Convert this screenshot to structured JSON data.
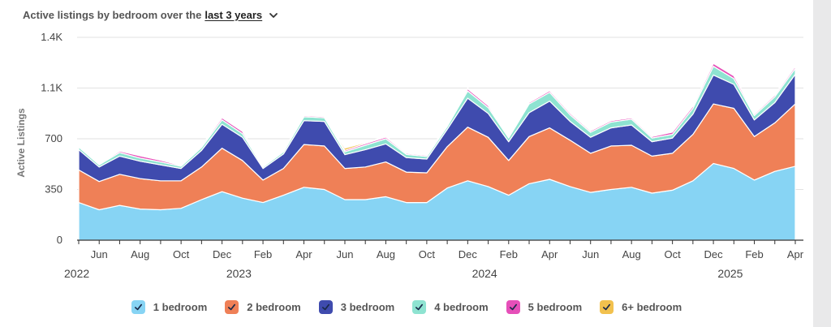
{
  "header": {
    "prefix": "Active listings by bedroom over the",
    "range_link": "last 3 years"
  },
  "chart_data": {
    "type": "area",
    "stacked": true,
    "ylabel": "Active Listings",
    "y_ticks": [
      "0",
      "350",
      "700",
      "1.1K",
      "1.4K"
    ],
    "y_tick_values": [
      0,
      350,
      700,
      1050,
      1400
    ],
    "ylim": [
      0,
      1400
    ],
    "x_months": [
      "May 2022",
      "Jun 2022",
      "Jul 2022",
      "Aug 2022",
      "Sep 2022",
      "Oct 2022",
      "Nov 2022",
      "Dec 2022",
      "Jan 2023",
      "Feb 2023",
      "Mar 2023",
      "Apr 2023",
      "May 2023",
      "Jun 2023",
      "Jul 2023",
      "Aug 2023",
      "Sep 2023",
      "Oct 2023",
      "Nov 2023",
      "Dec 2023",
      "Jan 2024",
      "Feb 2024",
      "Mar 2024",
      "Apr 2024",
      "May 2024",
      "Jun 2024",
      "Jul 2024",
      "Aug 2024",
      "Sep 2024",
      "Oct 2024",
      "Nov 2024",
      "Dec 2024",
      "Jan 2025",
      "Feb 2025",
      "Mar 2025",
      "Apr 2025"
    ],
    "x_tick_labels": [
      {
        "label": "Jun",
        "index": 1
      },
      {
        "label": "Aug",
        "index": 3
      },
      {
        "label": "Oct",
        "index": 5
      },
      {
        "label": "Dec",
        "index": 7
      },
      {
        "label": "Feb",
        "index": 9
      },
      {
        "label": "Apr",
        "index": 11
      },
      {
        "label": "Jun",
        "index": 13
      },
      {
        "label": "Aug",
        "index": 15
      },
      {
        "label": "Oct",
        "index": 17
      },
      {
        "label": "Dec",
        "index": 19
      },
      {
        "label": "Feb",
        "index": 21
      },
      {
        "label": "Apr",
        "index": 23
      },
      {
        "label": "Jun",
        "index": 25
      },
      {
        "label": "Aug",
        "index": 27
      },
      {
        "label": "Oct",
        "index": 29
      },
      {
        "label": "Dec",
        "index": 31
      },
      {
        "label": "Feb",
        "index": 33
      },
      {
        "label": "Apr",
        "index": 35
      }
    ],
    "year_labels": [
      {
        "label": "2022",
        "index": 0
      },
      {
        "label": "2023",
        "index": 8
      },
      {
        "label": "2024",
        "index": 20
      },
      {
        "label": "2025",
        "index": 32
      }
    ],
    "grid": true,
    "legend_position": "bottom",
    "series": [
      {
        "name": "1 bedroom",
        "color": "#87d4f4",
        "values": [
          260,
          210,
          240,
          215,
          210,
          220,
          280,
          335,
          290,
          260,
          310,
          365,
          350,
          280,
          280,
          300,
          260,
          260,
          360,
          410,
          370,
          310,
          390,
          420,
          370,
          330,
          350,
          365,
          325,
          345,
          410,
          530,
          495,
          415,
          475,
          510
        ]
      },
      {
        "name": "2 bedroom",
        "color": "#ef8057",
        "values": [
          225,
          195,
          215,
          210,
          200,
          190,
          225,
          300,
          260,
          155,
          185,
          295,
          300,
          215,
          225,
          240,
          210,
          205,
          285,
          370,
          340,
          240,
          325,
          355,
          320,
          270,
          300,
          290,
          255,
          255,
          320,
          410,
          415,
          300,
          335,
          430
        ]
      },
      {
        "name": "3 bedroom",
        "color": "#3f4bae",
        "values": [
          140,
          100,
          125,
          120,
          110,
          85,
          115,
          165,
          160,
          80,
          100,
          165,
          170,
          95,
          120,
          125,
          100,
          95,
          120,
          200,
          165,
          130,
          165,
          185,
          130,
          110,
          125,
          140,
          100,
          105,
          140,
          200,
          165,
          115,
          140,
          205
        ]
      },
      {
        "name": "4 bedroom",
        "color": "#8ee3d1",
        "values": [
          18,
          15,
          25,
          22,
          20,
          15,
          20,
          30,
          25,
          10,
          15,
          27,
          25,
          20,
          30,
          35,
          22,
          18,
          20,
          50,
          40,
          25,
          60,
          60,
          45,
          35,
          40,
          40,
          25,
          25,
          40,
          60,
          40,
          30,
          40,
          40
        ]
      },
      {
        "name": "5 bedroom",
        "color": "#e64fb9",
        "values": [
          8,
          6,
          10,
          15,
          12,
          6,
          10,
          15,
          16,
          5,
          5,
          8,
          8,
          10,
          12,
          12,
          8,
          8,
          10,
          15,
          14,
          6,
          10,
          12,
          12,
          10,
          10,
          10,
          10,
          16,
          15,
          20,
          20,
          10,
          12,
          15
        ]
      },
      {
        "name": "6+ bedroom",
        "color": "#f2c14e",
        "values": [
          3,
          3,
          3,
          3,
          3,
          3,
          3,
          4,
          4,
          3,
          3,
          4,
          4,
          15,
          6,
          6,
          3,
          3,
          3,
          5,
          5,
          3,
          5,
          7,
          5,
          5,
          5,
          5,
          4,
          6,
          5,
          8,
          8,
          4,
          6,
          8
        ]
      }
    ]
  }
}
